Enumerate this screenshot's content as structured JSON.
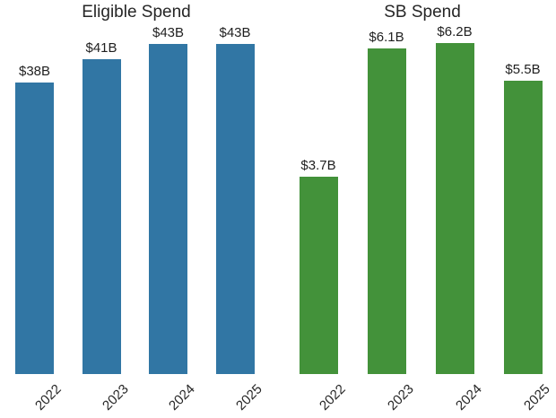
{
  "figure": {
    "background_color": "#ffffff",
    "text_color": "#262626"
  },
  "chart_data": [
    {
      "type": "bar",
      "title": "Eligible Spend",
      "categories": [
        "2022",
        "2023",
        "2024",
        "2025"
      ],
      "values": [
        38,
        41,
        43,
        43
      ],
      "data_labels": [
        "$38B",
        "$41B",
        "$43B",
        "$43B"
      ],
      "unit": "USD billions",
      "bar_color": "#3176a4",
      "xlabel": "",
      "ylabel": "",
      "ylim": [
        0,
        47
      ],
      "grid": false,
      "legend": false,
      "axis_lines": false,
      "tick_label_rotation_deg": 45
    },
    {
      "type": "bar",
      "title": "SB Spend",
      "categories": [
        "2022",
        "2023",
        "2024",
        "2025"
      ],
      "values": [
        3.7,
        6.1,
        6.2,
        5.5
      ],
      "data_labels": [
        "$3.7B",
        "$6.1B",
        "$6.2B",
        "$5.5B"
      ],
      "unit": "USD billions",
      "bar_color": "#43923a",
      "xlabel": "",
      "ylabel": "",
      "ylim": [
        0,
        6.8
      ],
      "grid": false,
      "legend": false,
      "axis_lines": false,
      "tick_label_rotation_deg": 45
    }
  ]
}
